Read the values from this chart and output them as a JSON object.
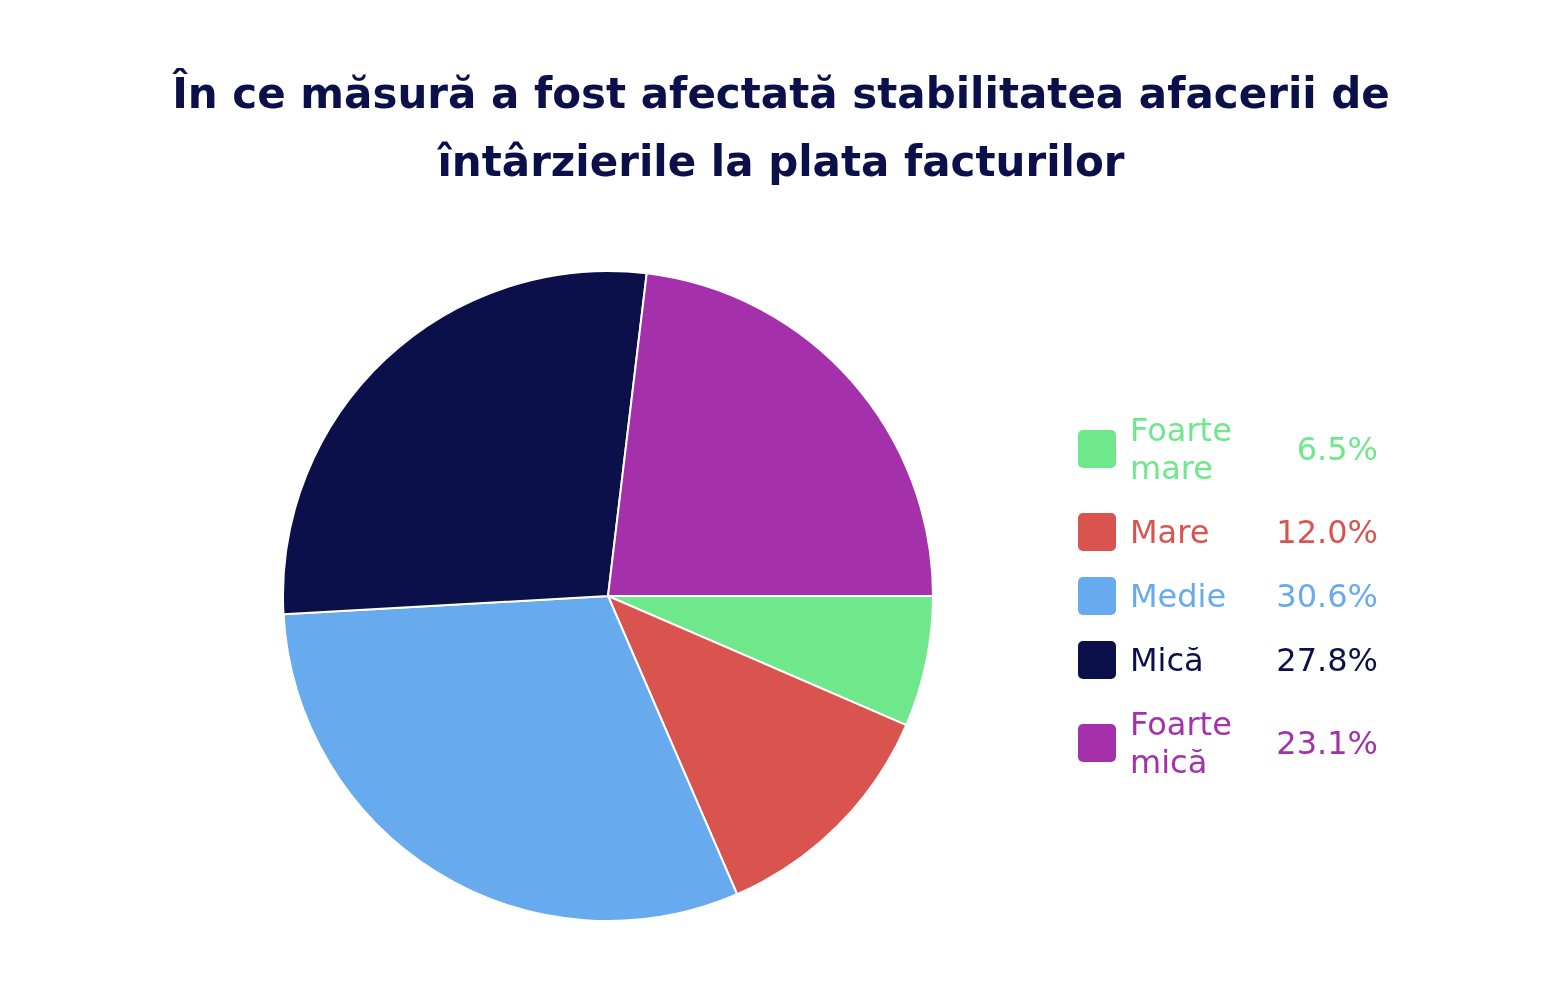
{
  "chart_data": {
    "type": "pie",
    "title": "În ce măsură a fost afectată stabilitatea afacerii de întârzierile la plata facturilor",
    "categories": [
      "Foarte mare",
      "Mare",
      "Medie",
      "Mică",
      "Foarte mică"
    ],
    "values": [
      6.5,
      12.0,
      30.6,
      27.8,
      23.1
    ],
    "colors": [
      "#6ee88a",
      "#d9534f",
      "#68aaee",
      "#0b0f4a",
      "#a430ac"
    ],
    "value_labels": [
      "6.5%",
      "12.0%",
      "30.6%",
      "27.8%",
      "23.1%"
    ],
    "legend": "right"
  }
}
